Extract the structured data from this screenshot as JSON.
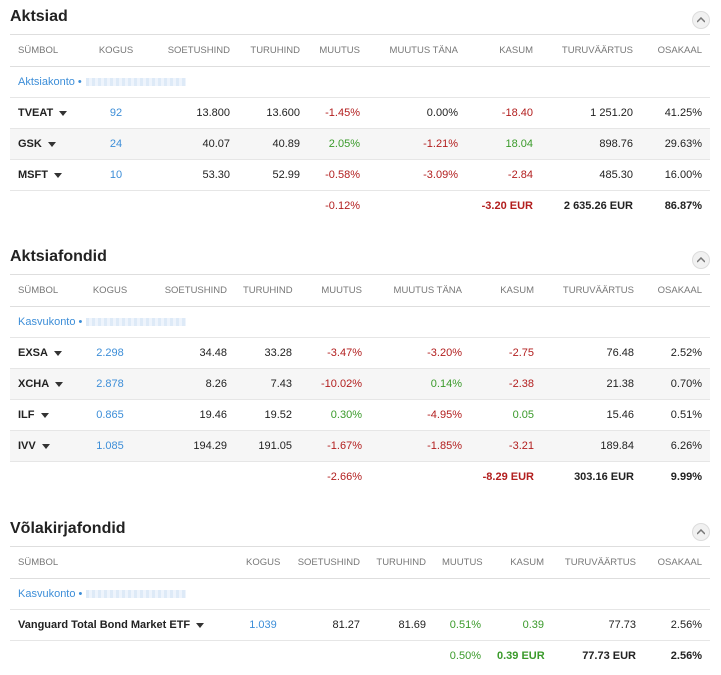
{
  "stocks": {
    "title": "Aktsiad",
    "headers": [
      "SÜMBOL",
      "KOGUS",
      "SOETUSHIND",
      "TURUHIND",
      "MUUTUS",
      "MUUTUS TÄNA",
      "KASUM",
      "TURUVÄÄRTUS",
      "OSAKAAL"
    ],
    "account": "Aktsiakonto •",
    "rows": [
      {
        "symbol": "TVEAT",
        "qty": "92",
        "cost": "13.800",
        "price": "13.600",
        "change": "-1.45%",
        "today": "0.00%",
        "profit": "-18.40",
        "value": "1 251.20",
        "share": "41.25%"
      },
      {
        "symbol": "GSK",
        "qty": "24",
        "cost": "40.07",
        "price": "40.89",
        "change": "2.05%",
        "today": "-1.21%",
        "profit": "18.04",
        "value": "898.76",
        "share": "29.63%"
      },
      {
        "symbol": "MSFT",
        "qty": "10",
        "cost": "53.30",
        "price": "52.99",
        "change": "-0.58%",
        "today": "-3.09%",
        "profit": "-2.84",
        "value": "485.30",
        "share": "16.00%"
      }
    ],
    "total": {
      "change": "-0.12%",
      "profit": "-3.20 EUR",
      "value": "2 635.26 EUR",
      "share": "86.87%"
    }
  },
  "equity_funds": {
    "title": "Aktsiafondid",
    "headers": [
      "SÜMBOL",
      "KOGUS",
      "SOETUSHIND",
      "TURUHIND",
      "MUUTUS",
      "MUUTUS TÄNA",
      "KASUM",
      "TURUVÄÄRTUS",
      "OSAKAAL"
    ],
    "account": "Kasvukonto •",
    "rows": [
      {
        "symbol": "EXSA",
        "qty": "2.298",
        "cost": "34.48",
        "price": "33.28",
        "change": "-3.47%",
        "today": "-3.20%",
        "profit": "-2.75",
        "value": "76.48",
        "share": "2.52%"
      },
      {
        "symbol": "XCHA",
        "qty": "2.878",
        "cost": "8.26",
        "price": "7.43",
        "change": "-10.02%",
        "today": "0.14%",
        "profit": "-2.38",
        "value": "21.38",
        "share": "0.70%"
      },
      {
        "symbol": "ILF",
        "qty": "0.865",
        "cost": "19.46",
        "price": "19.52",
        "change": "0.30%",
        "today": "-4.95%",
        "profit": "0.05",
        "value": "15.46",
        "share": "0.51%"
      },
      {
        "symbol": "IVV",
        "qty": "1.085",
        "cost": "194.29",
        "price": "191.05",
        "change": "-1.67%",
        "today": "-1.85%",
        "profit": "-3.21",
        "value": "189.84",
        "share": "6.26%"
      }
    ],
    "total": {
      "change": "-2.66%",
      "profit": "-8.29 EUR",
      "value": "303.16 EUR",
      "share": "9.99%"
    }
  },
  "bond_funds": {
    "title": "Võlakirjafondid",
    "headers": [
      "SÜMBOL",
      "KOGUS",
      "SOETUSHIND",
      "TURUHIND",
      "MUUTUS",
      "KASUM",
      "TURUVÄÄRTUS",
      "OSAKAAL"
    ],
    "account": "Kasvukonto •",
    "rows": [
      {
        "symbol": "Vanguard Total Bond Market ETF",
        "qty": "1.039",
        "cost": "81.27",
        "price": "81.69",
        "change": "0.51%",
        "profit": "0.39",
        "value": "77.73",
        "share": "2.56%"
      }
    ],
    "total": {
      "change": "0.50%",
      "profit": "0.39 EUR",
      "value": "77.73 EUR",
      "share": "2.56%"
    }
  },
  "colors": {
    "link": "#3d8ed8",
    "negative": "#b21e1e",
    "positive": "#3a9a2a"
  },
  "icons": {
    "collapse": "chevron-up-icon",
    "row_menu": "caret-down-icon"
  }
}
